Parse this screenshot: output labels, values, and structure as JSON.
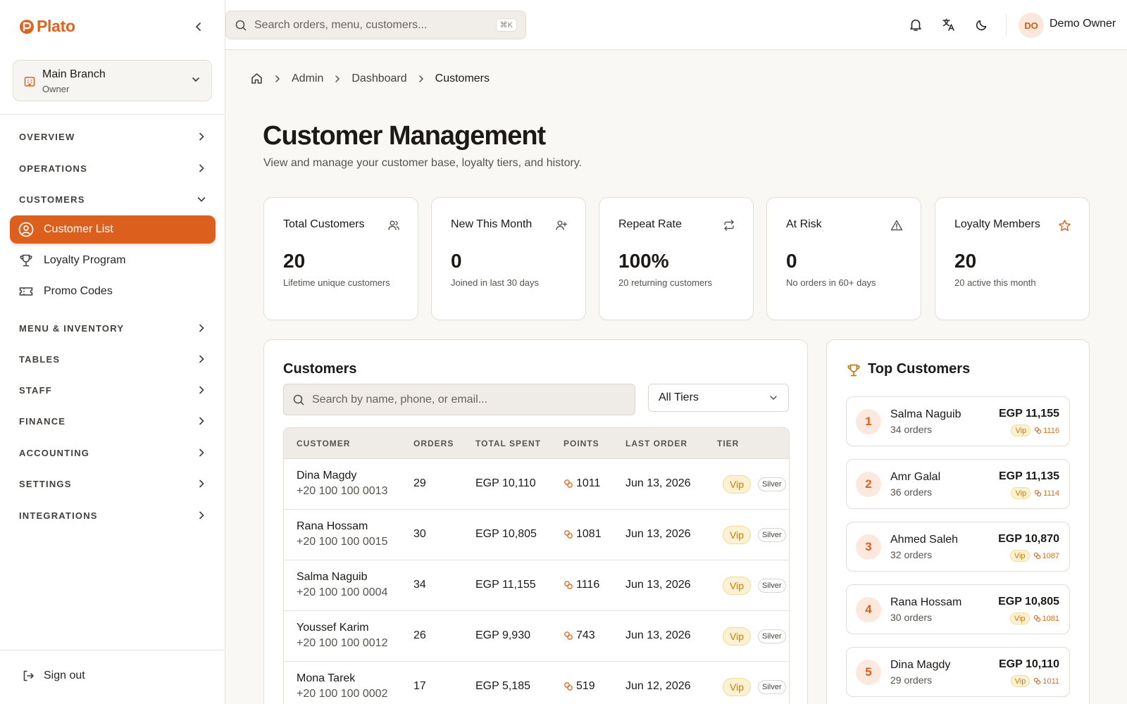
{
  "app": {
    "name": "Plato",
    "accent": "#dc5f1e"
  },
  "branch": {
    "name": "Main Branch",
    "role": "Owner"
  },
  "sidebar": {
    "sections": [
      {
        "label": "OVERVIEW"
      },
      {
        "label": "OPERATIONS"
      },
      {
        "label": "CUSTOMERS"
      },
      {
        "label": "MENU & INVENTORY"
      },
      {
        "label": "TABLES"
      },
      {
        "label": "STAFF"
      },
      {
        "label": "FINANCE"
      },
      {
        "label": "ACCOUNTING"
      },
      {
        "label": "SETTINGS"
      },
      {
        "label": "INTEGRATIONS"
      }
    ],
    "customer_items": [
      {
        "label": "Customer List",
        "icon": "user-circle-icon",
        "active": true
      },
      {
        "label": "Loyalty Program",
        "icon": "trophy-icon",
        "active": false
      },
      {
        "label": "Promo Codes",
        "icon": "ticket-icon",
        "active": false
      }
    ],
    "signout": "Sign out"
  },
  "topbar": {
    "search_placeholder": "Search orders, menu, customers...",
    "shortcut": "⌘K",
    "user": {
      "initials": "DO",
      "name": "Demo Owner"
    }
  },
  "breadcrumb": [
    "Admin",
    "Dashboard",
    "Customers"
  ],
  "page": {
    "title": "Customer Management",
    "subtitle": "View and manage your customer base, loyalty tiers, and history."
  },
  "stats": [
    {
      "label": "Total Customers",
      "value": "20",
      "desc": "Lifetime unique customers",
      "icon": "users-icon"
    },
    {
      "label": "New This Month",
      "value": "0",
      "desc": "Joined in last 30 days",
      "icon": "user-plus-icon"
    },
    {
      "label": "Repeat Rate",
      "value": "100%",
      "desc": "20 returning customers",
      "icon": "repeat-icon"
    },
    {
      "label": "At Risk",
      "value": "0",
      "desc": "No orders in 60+ days",
      "icon": "alert-triangle-icon"
    },
    {
      "label": "Loyalty Members",
      "value": "20",
      "desc": "20 active this month",
      "icon": "star-icon"
    }
  ],
  "customers": {
    "title": "Customers",
    "search_placeholder": "Search by name, phone, or email...",
    "tier_filter": "All Tiers",
    "columns": [
      "CUSTOMER",
      "ORDERS",
      "TOTAL SPENT",
      "POINTS",
      "LAST ORDER",
      "TIER"
    ],
    "rows": [
      {
        "name": "Dina Magdy",
        "phone": "+20 100 100 0013",
        "orders": "29",
        "spent": "EGP 10,110",
        "points": "1011",
        "last_order": "Jun 13, 2026",
        "tier": "Vip",
        "level": "Silver"
      },
      {
        "name": "Rana Hossam",
        "phone": "+20 100 100 0015",
        "orders": "30",
        "spent": "EGP 10,805",
        "points": "1081",
        "last_order": "Jun 13, 2026",
        "tier": "Vip",
        "level": "Silver"
      },
      {
        "name": "Salma Naguib",
        "phone": "+20 100 100 0004",
        "orders": "34",
        "spent": "EGP 11,155",
        "points": "1116",
        "last_order": "Jun 13, 2026",
        "tier": "Vip",
        "level": "Silver"
      },
      {
        "name": "Youssef Karim",
        "phone": "+20 100 100 0012",
        "orders": "26",
        "spent": "EGP 9,930",
        "points": "743",
        "last_order": "Jun 13, 2026",
        "tier": "Vip",
        "level": "Silver"
      },
      {
        "name": "Mona Tarek",
        "phone": "+20 100 100 0002",
        "orders": "17",
        "spent": "EGP 5,185",
        "points": "519",
        "last_order": "Jun 12, 2026",
        "tier": "Vip",
        "level": "Silver"
      }
    ]
  },
  "top_customers": {
    "title": "Top Customers",
    "items": [
      {
        "rank": "1",
        "name": "Salma Naguib",
        "orders": "34 orders",
        "spent": "EGP 11,155",
        "tier": "Vip",
        "points": "1116"
      },
      {
        "rank": "2",
        "name": "Amr Galal",
        "orders": "36 orders",
        "spent": "EGP 11,135",
        "tier": "Vip",
        "points": "1114"
      },
      {
        "rank": "3",
        "name": "Ahmed Saleh",
        "orders": "32 orders",
        "spent": "EGP 10,870",
        "tier": "Vip",
        "points": "1087"
      },
      {
        "rank": "4",
        "name": "Rana Hossam",
        "orders": "30 orders",
        "spent": "EGP 10,805",
        "tier": "Vip",
        "points": "1081"
      },
      {
        "rank": "5",
        "name": "Dina Magdy",
        "orders": "29 orders",
        "spent": "EGP 10,110",
        "tier": "Vip",
        "points": "1011"
      }
    ]
  }
}
